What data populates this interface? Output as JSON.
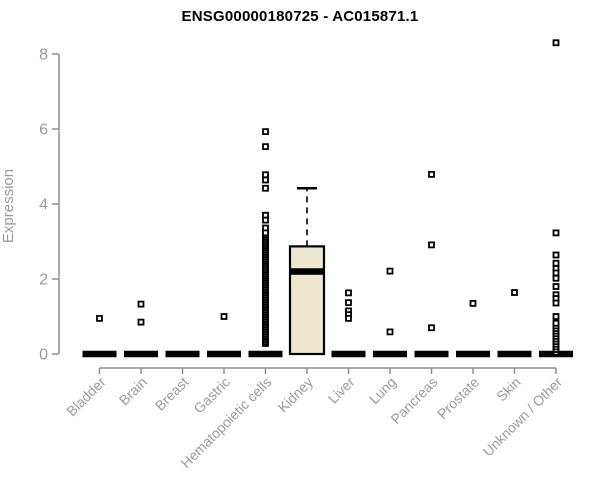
{
  "chart_data": {
    "type": "boxplot",
    "title": "ENSG00000180725 - AC015871.1",
    "ylabel": "Expression",
    "xlabel": "",
    "ylim": [
      0,
      8
    ],
    "yticks": [
      0,
      2,
      4,
      6,
      8
    ],
    "grid": false,
    "legend": "none",
    "categories": [
      "Bladder",
      "Brain",
      "Breast",
      "Gastric",
      "Hematopoietic cells",
      "Kidney",
      "Liver",
      "Lung",
      "Pancreas",
      "Prostate",
      "Skin",
      "Unknown / Other"
    ],
    "boxes": [
      {
        "category": "Bladder",
        "q1": 0,
        "median": 0,
        "q3": 0,
        "whisker_low": 0,
        "whisker_high": 0,
        "outliers": [
          0.95
        ]
      },
      {
        "category": "Brain",
        "q1": 0,
        "median": 0,
        "q3": 0,
        "whisker_low": 0,
        "whisker_high": 0,
        "outliers": [
          1.33,
          0.85
        ]
      },
      {
        "category": "Breast",
        "q1": 0,
        "median": 0,
        "q3": 0,
        "whisker_low": 0,
        "whisker_high": 0,
        "outliers": []
      },
      {
        "category": "Gastric",
        "q1": 0,
        "median": 0,
        "q3": 0,
        "whisker_low": 0,
        "whisker_high": 0,
        "outliers": [
          1.0
        ]
      },
      {
        "category": "Hematopoietic cells",
        "q1": 0,
        "median": 0,
        "q3": 0,
        "whisker_low": 0,
        "whisker_high": 0,
        "outliers": [
          5.93,
          5.53,
          4.78,
          4.64,
          4.42,
          3.7,
          3.57,
          3.36
        ],
        "outlier_stack": {
          "min": 0.28,
          "max": 3.25,
          "step": 0.05
        }
      },
      {
        "category": "Kidney",
        "q1": 0,
        "median": 2.2,
        "q3": 2.87,
        "whisker_low": 0,
        "whisker_high": 4.42,
        "outliers": [],
        "filled": true
      },
      {
        "category": "Liver",
        "q1": 0,
        "median": 0,
        "q3": 0,
        "whisker_low": 0,
        "whisker_high": 0,
        "outliers": [
          1.63,
          1.37,
          1.15,
          1.05,
          0.95
        ]
      },
      {
        "category": "Lung",
        "q1": 0,
        "median": 0,
        "q3": 0,
        "whisker_low": 0,
        "whisker_high": 0,
        "outliers": [
          2.21,
          0.59
        ]
      },
      {
        "category": "Pancreas",
        "q1": 0,
        "median": 0,
        "q3": 0,
        "whisker_low": 0,
        "whisker_high": 0,
        "outliers": [
          4.79,
          2.91,
          0.7
        ]
      },
      {
        "category": "Prostate",
        "q1": 0,
        "median": 0,
        "q3": 0,
        "whisker_low": 0,
        "whisker_high": 0,
        "outliers": [
          1.35
        ]
      },
      {
        "category": "Skin",
        "q1": 0,
        "median": 0,
        "q3": 0,
        "whisker_low": 0,
        "whisker_high": 0,
        "outliers": [
          1.64
        ]
      },
      {
        "category": "Unknown / Other",
        "q1": 0,
        "median": 0,
        "q3": 0,
        "whisker_low": 0,
        "whisker_high": 0,
        "outliers": [
          8.3,
          3.23,
          2.64,
          2.42,
          2.28,
          2.16,
          2.02,
          1.8,
          1.58,
          1.48,
          1.36,
          1.0
        ],
        "outlier_stack": {
          "min": 0.05,
          "max": 0.82,
          "step": 0.07
        }
      }
    ],
    "colors": {
      "box_fill": "#EDE7CF",
      "box_line": "#000000",
      "median": "#000000",
      "point_stroke": "#000000",
      "point_fill": "#ffffff",
      "axis": "#8f8f8f",
      "tick_label": "#9a9a9a",
      "title": "#000000",
      "background": "#ffffff"
    }
  }
}
